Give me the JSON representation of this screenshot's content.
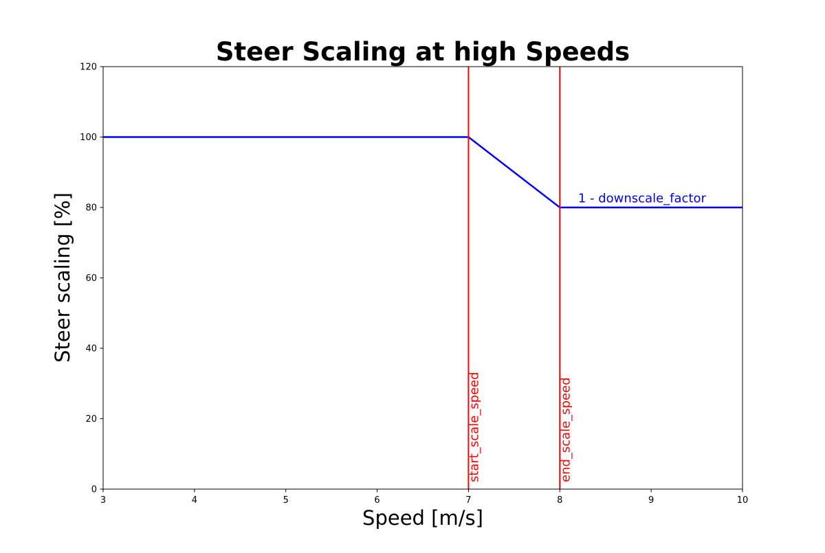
{
  "chart_data": {
    "type": "line",
    "title": "Steer Scaling at high Speeds",
    "xlabel": "Speed [m/s]",
    "ylabel": "Steer scaling [%]",
    "xlim": [
      3,
      10
    ],
    "ylim": [
      0,
      120
    ],
    "xticks": [
      3,
      4,
      5,
      6,
      7,
      8,
      9,
      10
    ],
    "yticks": [
      0,
      20,
      40,
      60,
      80,
      100,
      120
    ],
    "grid": false,
    "series": [
      {
        "color": "#0000ff",
        "x": [
          3,
          7,
          8,
          10
        ],
        "y": [
          100,
          100,
          80,
          80
        ]
      }
    ],
    "vlines": [
      {
        "x": 7,
        "color": "#ff0000",
        "label": "start_scale_speed"
      },
      {
        "x": 8,
        "color": "#ff0000",
        "label": "end_scale_speed"
      }
    ],
    "annotations": [
      {
        "text": "1 - downscale_factor",
        "x": 8.2,
        "y": 81.5,
        "color": "#0000ff"
      }
    ]
  }
}
